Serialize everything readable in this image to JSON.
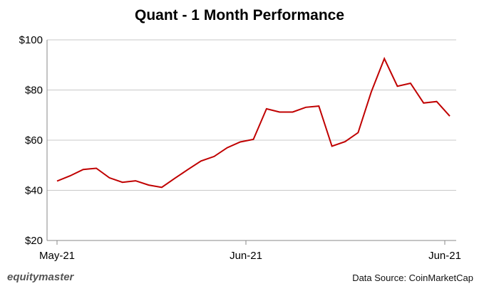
{
  "chart_data": {
    "type": "line",
    "title": "Quant - 1 Month Performance",
    "xlabel": "",
    "ylabel": "",
    "x_ticks": [
      "May-21",
      "Jun-21",
      "Jun-21"
    ],
    "y_ticks": [
      "$20",
      "$40",
      "$60",
      "$80",
      "$100"
    ],
    "ylim": [
      20,
      100
    ],
    "grid": true,
    "line_color": "#c00000",
    "series": [
      {
        "values": [
          43.7,
          45.8,
          48.3,
          48.8,
          45.0,
          43.2,
          43.8,
          42.1,
          41.2,
          44.8,
          48.3,
          51.7,
          53.5,
          57.0,
          59.3,
          60.3,
          72.5,
          71.2,
          71.2,
          73.1,
          73.6,
          57.6,
          59.4,
          63.0,
          79.2,
          92.5,
          81.5,
          82.7,
          74.8,
          75.4,
          69.6
        ]
      }
    ]
  },
  "footer": {
    "brand": "equitymaster",
    "source": "Data Source: CoinMarketCap"
  }
}
